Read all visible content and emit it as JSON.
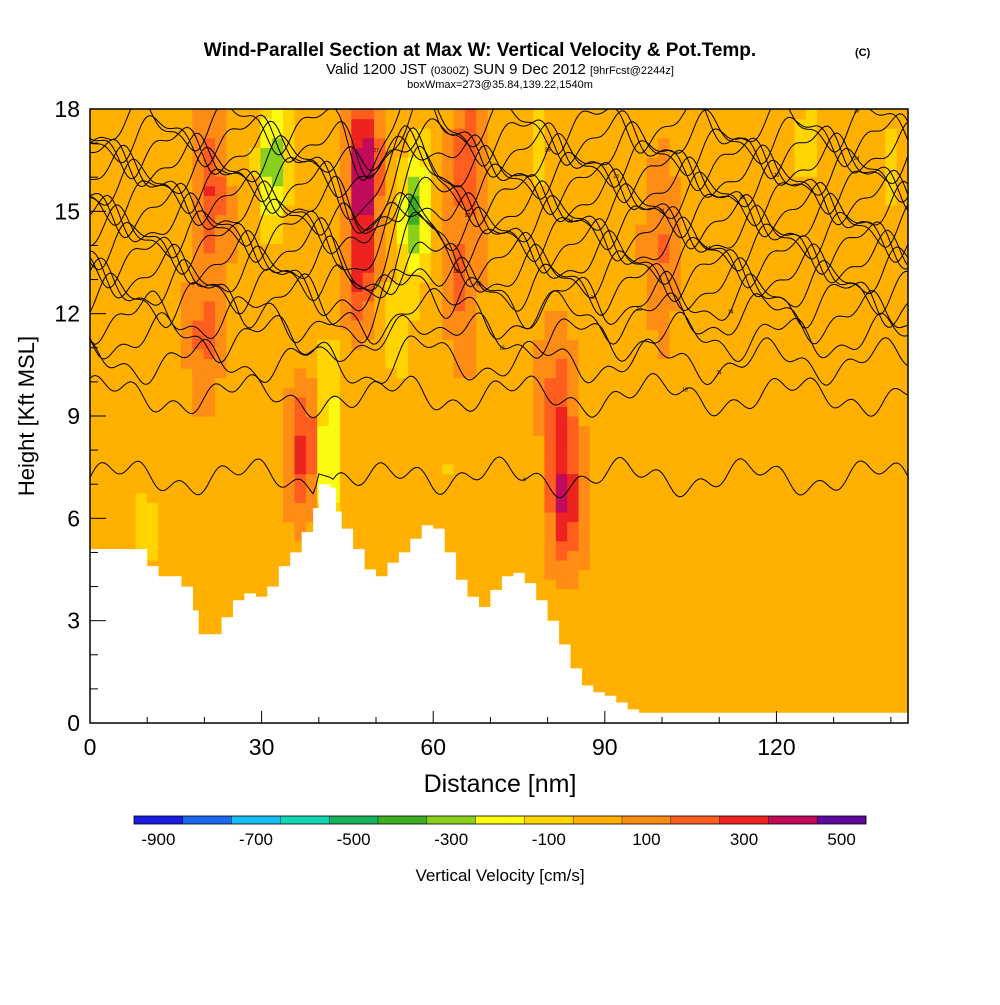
{
  "chart_data": {
    "type": "heatmap",
    "title": "Wind-Parallel Section at Max W: Vertical Velocity & Pot.Temp.",
    "title_mark": "(C)",
    "subtitle": {
      "prefix": "Valid 1200 JST",
      "utc": "(0300Z)",
      "date": "SUN 9 Dec 2012",
      "forecast": "[9hrFcst@2244z]"
    },
    "box_info": "boxWmax=273@35.84,139.22,1540m",
    "xlabel": "Distance [nm]",
    "ylabel": "Height [Kft MSL]",
    "xlim": [
      0,
      143
    ],
    "ylim": [
      0,
      18
    ],
    "xticks": [
      0,
      30,
      60,
      90,
      120
    ],
    "yticks": [
      0,
      3,
      6,
      9,
      12,
      15,
      18
    ],
    "grid": false,
    "background_w": 75,
    "velocity_features": [
      {
        "x": 48,
        "y": 16.5,
        "w": 420
      },
      {
        "x": 47,
        "y": 13.5,
        "w": 280
      },
      {
        "x": 38,
        "y": 8,
        "w": 330
      },
      {
        "x": 83,
        "y": 6.5,
        "w": 320
      },
      {
        "x": 82,
        "y": 9.5,
        "w": 200
      },
      {
        "x": 21,
        "y": 15.5,
        "w": 230
      },
      {
        "x": 20,
        "y": 11.5,
        "w": 150
      },
      {
        "x": 66,
        "y": 16.5,
        "w": 200
      },
      {
        "x": 65,
        "y": 13,
        "w": 160
      },
      {
        "x": 100,
        "y": 14,
        "w": 150
      },
      {
        "x": 32,
        "y": 16.5,
        "w": -370
      },
      {
        "x": 57,
        "y": 15,
        "w": -400
      },
      {
        "x": 41,
        "y": 7.5,
        "w": -310
      },
      {
        "x": 54,
        "y": 11.5,
        "w": -150
      },
      {
        "x": 42,
        "y": 10,
        "w": -150
      },
      {
        "x": 10,
        "y": 5.5,
        "w": -100
      },
      {
        "x": 78,
        "y": 17,
        "w": -120
      },
      {
        "x": 125,
        "y": 17,
        "w": -110
      },
      {
        "x": 140,
        "y": 16,
        "w": -100
      },
      {
        "x": 63,
        "y": 7.5,
        "w": -80
      }
    ],
    "theta_contours": [
      {
        "level": 9,
        "base": 7.2,
        "amp": 0.35,
        "per": 22,
        "label_x": 76
      },
      {
        "level": 10,
        "base": 9.6,
        "amp": 0.4,
        "per": 24,
        "label_x": 104
      },
      {
        "level": 11,
        "base": 10.6,
        "amp": 0.45,
        "per": 20,
        "label_x": 110
      },
      {
        "level": 12,
        "base": 11.3,
        "amp": 0.5,
        "per": 18,
        "label_x": 72
      },
      {
        "level": 13,
        "base": 11.9,
        "amp": 0.55,
        "per": 18,
        "label_x": 96
      },
      {
        "level": 14,
        "base": 12.4,
        "amp": 0.6,
        "per": 16,
        "label_x": 112
      },
      {
        "level": 15,
        "base": 12.8,
        "amp": 0.6,
        "per": 16,
        "label_x": 68
      },
      {
        "level": 16,
        "base": 13.2,
        "amp": 0.6,
        "per": 16,
        "label_x": 88
      },
      {
        "level": 17,
        "base": 13.6,
        "amp": 0.6,
        "per": 16,
        "label_x": 108
      },
      {
        "level": 18,
        "base": 14.0,
        "amp": 0.6,
        "per": 16,
        "label_x": 64
      },
      {
        "level": 19,
        "base": 14.35,
        "amp": 0.6,
        "per": 16,
        "label_x": 84
      },
      {
        "level": 20,
        "base": 14.7,
        "amp": 0.6,
        "per": 16,
        "label_x": 114
      },
      {
        "level": 21,
        "base": 15.05,
        "amp": 0.6,
        "per": 16,
        "label_x": 100
      },
      {
        "level": 22,
        "base": 15.4,
        "amp": 0.6,
        "per": 16,
        "label_x": 66
      },
      {
        "level": 23,
        "base": 15.75,
        "amp": 0.6,
        "per": 16,
        "label_x": 92
      },
      {
        "level": 24,
        "base": 16.1,
        "amp": 0.6,
        "per": 16,
        "label_x": 134
      },
      {
        "level": 25,
        "base": 16.45,
        "amp": 0.6,
        "per": 16,
        "label_x": 80
      },
      {
        "level": 26,
        "base": 16.8,
        "amp": 0.6,
        "per": 16,
        "label_x": 120
      },
      {
        "level": 27,
        "base": 17.15,
        "amp": 0.6,
        "per": 16,
        "label_x": 50
      },
      {
        "level": 28,
        "base": 17.5,
        "amp": 0.6,
        "per": 16,
        "label_x": 134
      }
    ],
    "terrain": [
      [
        0,
        5.1
      ],
      [
        4,
        5.1
      ],
      [
        8,
        5.1
      ],
      [
        10,
        4.6
      ],
      [
        12,
        4.3
      ],
      [
        14,
        4.3
      ],
      [
        16,
        4.0
      ],
      [
        18,
        3.3
      ],
      [
        19,
        2.6
      ],
      [
        21,
        2.6
      ],
      [
        23,
        3.1
      ],
      [
        25,
        3.6
      ],
      [
        27,
        3.8
      ],
      [
        29,
        3.7
      ],
      [
        31,
        4.0
      ],
      [
        33,
        4.6
      ],
      [
        35,
        5.0
      ],
      [
        37,
        5.6
      ],
      [
        39,
        6.3
      ],
      [
        40,
        7.0
      ],
      [
        42,
        6.9
      ],
      [
        43,
        6.2
      ],
      [
        44,
        5.7
      ],
      [
        46,
        5.1
      ],
      [
        48,
        4.5
      ],
      [
        50,
        4.3
      ],
      [
        52,
        4.7
      ],
      [
        54,
        5.0
      ],
      [
        56,
        5.4
      ],
      [
        58,
        5.8
      ],
      [
        60,
        5.7
      ],
      [
        62,
        5.0
      ],
      [
        64,
        4.2
      ],
      [
        66,
        3.7
      ],
      [
        68,
        3.4
      ],
      [
        70,
        3.9
      ],
      [
        72,
        4.3
      ],
      [
        74,
        4.4
      ],
      [
        76,
        4.1
      ],
      [
        78,
        3.6
      ],
      [
        80,
        3.0
      ],
      [
        82,
        2.3
      ],
      [
        84,
        1.6
      ],
      [
        86,
        1.1
      ],
      [
        88,
        0.9
      ],
      [
        90,
        0.8
      ],
      [
        92,
        0.6
      ],
      [
        94,
        0.4
      ],
      [
        96,
        0.3
      ],
      [
        100,
        0.3
      ],
      [
        110,
        0.3
      ],
      [
        120,
        0.3
      ],
      [
        130,
        0.3
      ],
      [
        143,
        0.3
      ]
    ],
    "colorbar": {
      "label": "Vertical Velocity [cm/s]",
      "min": -900,
      "step": 100,
      "colors": [
        "#1b1be0",
        "#1a68f0",
        "#18bdf5",
        "#14d6b2",
        "#16b35e",
        "#3fae22",
        "#88d01c",
        "#fbfb12",
        "#ffd400",
        "#ffb000",
        "#ff8c14",
        "#ff5e1e",
        "#ec231e",
        "#c00a5a",
        "#5e0a9e"
      ],
      "tick_labels": [
        "-900",
        "-700",
        "-500",
        "-300",
        "-100",
        "100",
        "300",
        "500"
      ],
      "tick_values": [
        -900,
        -700,
        -500,
        -300,
        -100,
        100,
        300,
        500
      ]
    }
  }
}
